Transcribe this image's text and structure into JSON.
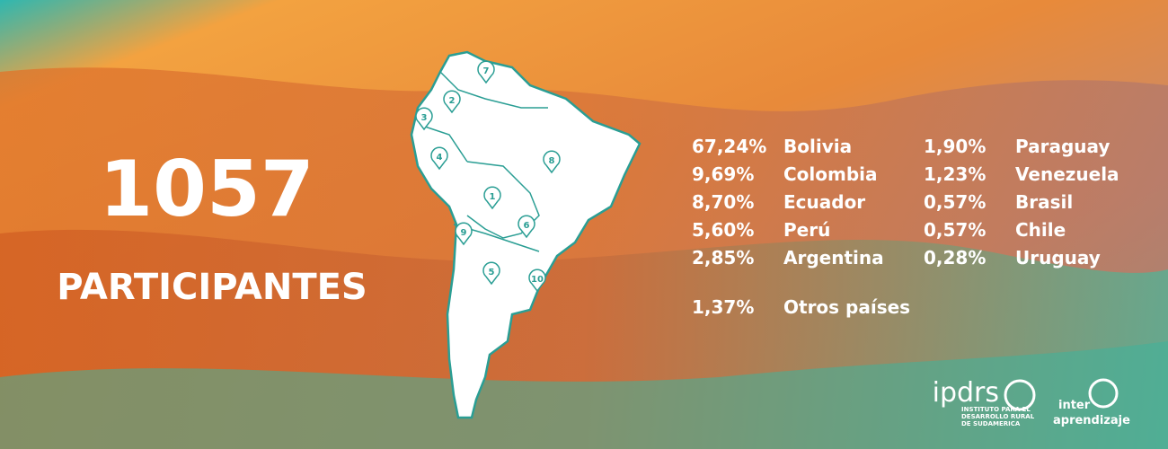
{
  "headline": {
    "number": "1057",
    "label": "PARTICIPANTES"
  },
  "stats": {
    "left": [
      {
        "percent": "67,24%",
        "country": "Bolivia"
      },
      {
        "percent": "9,69%",
        "country": "Colombia"
      },
      {
        "percent": "8,70%",
        "country": "Ecuador"
      },
      {
        "percent": "5,60%",
        "country": "Perú"
      },
      {
        "percent": "2,85%",
        "country": "Argentina"
      }
    ],
    "right": [
      {
        "percent": "1,90%",
        "country": "Paraguay"
      },
      {
        "percent": "1,23%",
        "country": "Venezuela"
      },
      {
        "percent": "0,57%",
        "country": "Brasil"
      },
      {
        "percent": "0,57%",
        "country": "Chile"
      },
      {
        "percent": "0,28%",
        "country": "Uruguay"
      }
    ],
    "other": {
      "percent": "1,37%",
      "country": "Otros países"
    }
  },
  "map": {
    "markers": [
      "1",
      "2",
      "3",
      "4",
      "5",
      "6",
      "7",
      "8",
      "9",
      "10"
    ]
  },
  "logos": {
    "ipdrs": {
      "name": "ipdrs",
      "tagline": [
        "INSTITUTO PARA EL",
        "DESARROLLO RURAL",
        "DE SUDAMERICA"
      ]
    },
    "interaprendizaje": {
      "prefix": "inter",
      "name": "aprendizaje"
    }
  }
}
